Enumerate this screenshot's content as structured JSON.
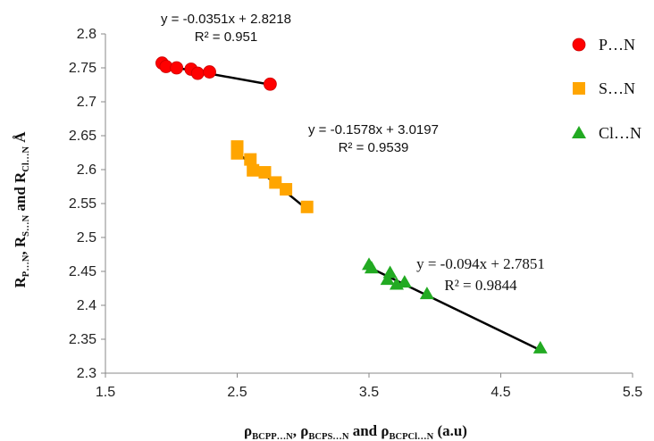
{
  "chart_data": {
    "type": "scatter",
    "xlim": [
      1.5,
      5.5
    ],
    "ylim": [
      2.3,
      2.8
    ],
    "x_ticks": [
      "1.5",
      "2.5",
      "3.5",
      "4.5",
      "5.5"
    ],
    "y_ticks": [
      "2.3",
      "2.35",
      "2.4",
      "2.45",
      "2.5",
      "2.55",
      "2.6",
      "2.65",
      "2.7",
      "2.75",
      "2.8"
    ],
    "grid": false,
    "legend_position": "top-right",
    "x_axis_title": {
      "parts": [
        {
          "t": "ρ",
          "s": "normal"
        },
        {
          "t": "BCPP…N",
          "s": "sub"
        },
        {
          "t": ", ρ",
          "s": "normal"
        },
        {
          "t": "BCPS…N",
          "s": "sub"
        },
        {
          "t": " and ρ",
          "s": "normal"
        },
        {
          "t": "BCPCl…N",
          "s": "sub"
        },
        {
          "t": " (a.u)",
          "s": "normal"
        }
      ]
    },
    "y_axis_title": {
      "parts": [
        {
          "t": "R",
          "s": "normal"
        },
        {
          "t": "P…N",
          "s": "sub"
        },
        {
          "t": ", R",
          "s": "normal"
        },
        {
          "t": "S…N",
          "s": "sub"
        },
        {
          "t": " and R",
          "s": "normal"
        },
        {
          "t": "Cl…N",
          "s": "sub"
        },
        {
          "t": "  Å",
          "s": "normal"
        }
      ]
    },
    "series": [
      {
        "name": "P…N",
        "marker": "circle",
        "color": "#ff0000",
        "x": [
          1.93,
          1.96,
          2.04,
          2.15,
          2.2,
          2.29,
          2.75
        ],
        "y": [
          2.757,
          2.752,
          2.75,
          2.748,
          2.742,
          2.744,
          2.726
        ],
        "trendline": {
          "x_range": [
            1.97,
            2.75
          ],
          "equation": "y = -0.0351x + 2.8218",
          "r2": "R² = 0.951",
          "eq_font": "sans"
        }
      },
      {
        "name": "S…N",
        "marker": "square",
        "color": "#ffa500",
        "x": [
          2.5,
          2.5,
          2.6,
          2.62,
          2.71,
          2.79,
          2.87,
          3.03
        ],
        "y": [
          2.634,
          2.624,
          2.615,
          2.599,
          2.596,
          2.581,
          2.571,
          2.545
        ],
        "trendline": {
          "x_range": [
            2.5,
            3.03
          ],
          "equation": "y = -0.1578x + 3.0197",
          "r2": "R² = 0.9539",
          "eq_font": "sans"
        }
      },
      {
        "name": "Cl…N",
        "marker": "triangle",
        "color": "#22aa22",
        "x": [
          3.5,
          3.52,
          3.64,
          3.66,
          3.71,
          3.77,
          3.94,
          4.8
        ],
        "y": [
          2.46,
          2.455,
          2.438,
          2.448,
          2.431,
          2.434,
          2.417,
          2.337
        ],
        "trendline": {
          "x_range": [
            3.5,
            4.8
          ],
          "equation": "y = -0.094x + 2.7851",
          "r2": "R² = 0.9844",
          "eq_font": "serif"
        }
      }
    ]
  }
}
